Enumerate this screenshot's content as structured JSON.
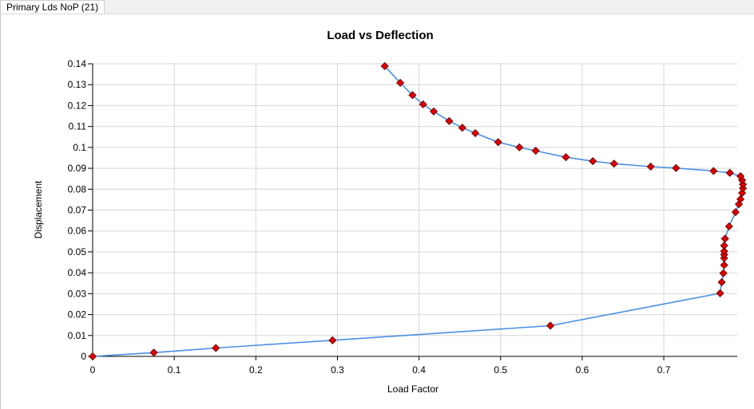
{
  "tab": {
    "label": "Primary Lds NoP (21)"
  },
  "chart_data": {
    "type": "line",
    "title": "Load vs Deflection",
    "xlabel": "Load Factor",
    "ylabel": "Displacement",
    "xlim": [
      0,
      0.79
    ],
    "ylim": [
      0,
      0.14
    ],
    "xticks": [
      "0",
      "0.1",
      "0.2",
      "0.3",
      "0.4",
      "0.5",
      "0.6",
      "0.7"
    ],
    "yticks": [
      "0",
      "0.01",
      "0.02",
      "0.03",
      "0.04",
      "0.05",
      "0.06",
      "0.07",
      "0.08",
      "0.09",
      "0.1",
      "0.11",
      "0.12",
      "0.13",
      "0.14"
    ],
    "grid": true,
    "legend": "none",
    "line_color": "#4a90e2",
    "marker_color": "#e00000",
    "marker": "diamond",
    "series": [
      {
        "x": [
          0,
          0.075,
          0.151,
          0.294,
          0.561,
          0.769,
          0.771,
          0.773,
          0.774,
          0.774,
          0.774,
          0.774,
          0.774,
          0.775,
          0.78,
          0.788,
          0.792,
          0.794,
          0.796,
          0.797,
          0.797,
          0.796,
          0.794,
          0.781,
          0.761,
          0.715,
          0.684,
          0.639,
          0.613,
          0.58,
          0.543,
          0.523,
          0.497,
          0.469,
          0.453,
          0.437,
          0.418,
          0.405,
          0.392,
          0.377,
          0.358
        ],
        "y": [
          0,
          0.0018,
          0.004,
          0.0077,
          0.0147,
          0.0302,
          0.0355,
          0.0398,
          0.0437,
          0.047,
          0.0487,
          0.0503,
          0.053,
          0.0563,
          0.0622,
          0.069,
          0.0728,
          0.0752,
          0.0782,
          0.0804,
          0.0823,
          0.0843,
          0.0862,
          0.0878,
          0.0887,
          0.0901,
          0.0908,
          0.0922,
          0.0934,
          0.0953,
          0.0984,
          0.1,
          0.1025,
          0.1068,
          0.1094,
          0.1126,
          0.1172,
          0.1206,
          0.125,
          0.1309,
          0.1389
        ]
      }
    ]
  }
}
